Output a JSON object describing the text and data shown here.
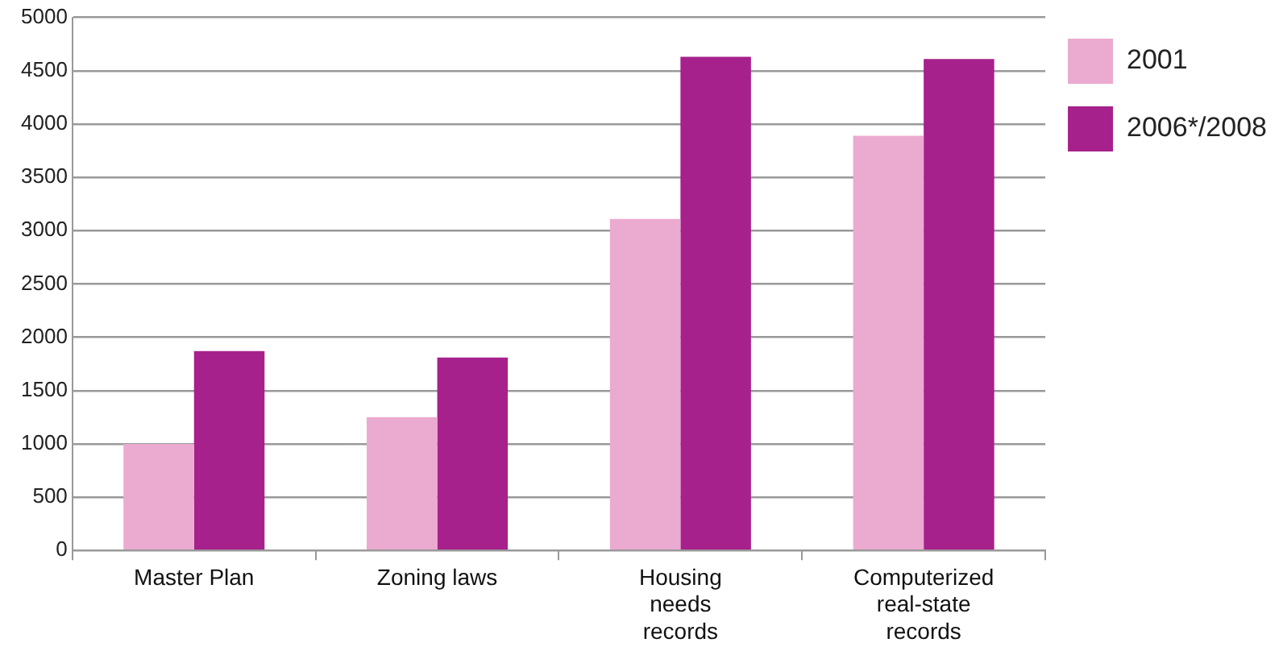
{
  "chart_data": {
    "type": "bar",
    "categories": [
      "Master Plan",
      "Zoning laws",
      "Housing needs records",
      "Computerized real-state records"
    ],
    "series": [
      {
        "name": "2001",
        "color": "#ebaad0",
        "values": [
          1000,
          1250,
          3110,
          3890
        ]
      },
      {
        "name": "2006*/2008",
        "color": "#a6218c",
        "values": [
          1870,
          1810,
          4630,
          4610
        ]
      }
    ],
    "ylim": [
      0,
      5000
    ],
    "yticks": [
      0,
      500,
      1000,
      1500,
      2000,
      2500,
      3000,
      3500,
      4000,
      4500,
      5000
    ],
    "grid": "y",
    "legend": "top right"
  }
}
